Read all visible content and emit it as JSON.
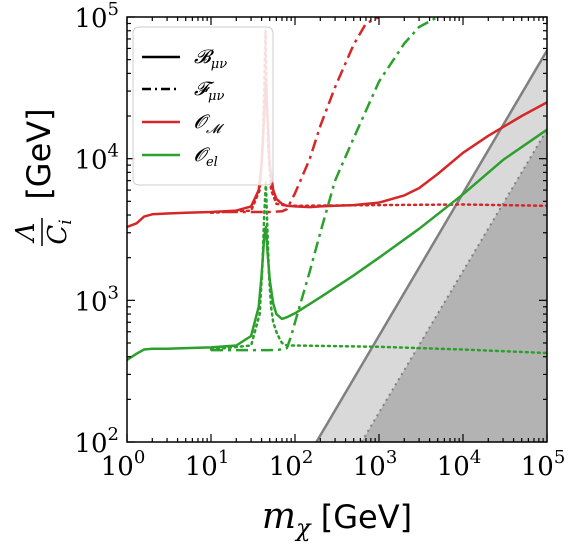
{
  "chart_data": {
    "type": "line",
    "xscale": "log",
    "yscale": "log",
    "xlim": [
      1,
      100000
    ],
    "ylim": [
      100,
      100000
    ],
    "xlabel": "m_χ  [GeV]",
    "ylabel": "Λ/C_i  [GeV]",
    "x_ticks": [
      {
        "value": 1,
        "label": "10^0"
      },
      {
        "value": 10,
        "label": "10^1"
      },
      {
        "value": 100,
        "label": "10^2"
      },
      {
        "value": 1000,
        "label": "10^3"
      },
      {
        "value": 10000,
        "label": "10^4"
      },
      {
        "value": 100000,
        "label": "10^5"
      }
    ],
    "y_ticks": [
      {
        "value": 100,
        "label": "10^2"
      },
      {
        "value": 1000,
        "label": "10^3"
      },
      {
        "value": 10000,
        "label": "10^4"
      },
      {
        "value": 100000,
        "label": "10^5"
      }
    ],
    "legend": {
      "placement": "top-left",
      "entries": [
        {
          "label": "𝓑_μν",
          "style": "solid",
          "color": "#000000"
        },
        {
          "label": "𝓕_μν",
          "style": "dashdot",
          "color": "#000000"
        },
        {
          "label": "𝓞_𝓜",
          "style": "solid",
          "color": "#d62728"
        },
        {
          "label": "𝓞_el",
          "style": "solid",
          "color": "#2ca02c"
        }
      ]
    },
    "regions": [
      {
        "name": "light-excluded",
        "color": "#d9d9d9",
        "boundary_x": [
          180,
          100000
        ],
        "boundary_y": [
          100,
          58000
        ]
      },
      {
        "name": "dark-excluded",
        "color": "#b3b3b3",
        "boundary_x": [
          620,
          100000
        ],
        "boundary_y": [
          100,
          16000
        ]
      }
    ],
    "series": [
      {
        "color": "#d62728",
        "style": "solid",
        "x": [
          1,
          1.3,
          1.6,
          2,
          3,
          5,
          10,
          20,
          30,
          37,
          40,
          43,
          45,
          47,
          50,
          55,
          60,
          70,
          80,
          100,
          150,
          200,
          300,
          500,
          1000,
          2000,
          3000,
          5000,
          10000,
          20000,
          50000,
          100000
        ],
        "y": [
          3300,
          3500,
          3900,
          4050,
          4100,
          4150,
          4200,
          4300,
          4600,
          6000,
          9000,
          20000,
          36000,
          20000,
          9000,
          6000,
          5200,
          4800,
          4650,
          4600,
          4550,
          4600,
          4650,
          4700,
          4900,
          5500,
          6200,
          7800,
          11000,
          14500,
          20000,
          25000
        ]
      },
      {
        "color": "#d62728",
        "style": "dotted",
        "x": [
          10,
          30,
          38,
          41,
          43,
          44.5,
          46,
          48,
          52,
          60,
          80,
          100,
          1000,
          10000,
          100000
        ],
        "y": [
          4150,
          4300,
          6000,
          12000,
          30000,
          80000,
          30000,
          12000,
          6000,
          4800,
          4650,
          4650,
          4700,
          4750,
          4650
        ]
      },
      {
        "color": "#d62728",
        "style": "dashdot",
        "x": [
          15,
          30,
          50,
          70,
          80,
          100,
          150,
          200,
          300,
          500,
          700,
          1000
        ],
        "y": [
          4200,
          4200,
          4200,
          4250,
          4400,
          5700,
          10000,
          17000,
          32000,
          64000,
          90000,
          100000
        ]
      },
      {
        "color": "#2ca02c",
        "style": "solid",
        "x": [
          1,
          1.3,
          1.6,
          2,
          3,
          5,
          10,
          20,
          30,
          37,
          40,
          43,
          45,
          47,
          50,
          55,
          60,
          70,
          80,
          100,
          200,
          500,
          1000,
          3000,
          10000,
          30000,
          100000
        ],
        "y": [
          380,
          420,
          450,
          455,
          455,
          460,
          465,
          480,
          560,
          900,
          1500,
          2800,
          3300,
          2200,
          1400,
          950,
          800,
          740,
          760,
          810,
          1050,
          1500,
          2000,
          3200,
          5600,
          9800,
          16000
        ]
      },
      {
        "color": "#2ca02c",
        "style": "dotted",
        "x": [
          10,
          30,
          38,
          41,
          43,
          45,
          47,
          49,
          52,
          55,
          60,
          65,
          70,
          80,
          100,
          1000,
          10000,
          100000
        ],
        "y": [
          450,
          480,
          800,
          1800,
          4000,
          6800,
          3000,
          1500,
          900,
          700,
          600,
          540,
          500,
          480,
          480,
          470,
          450,
          425
        ]
      },
      {
        "color": "#2ca02c",
        "style": "dashdot",
        "x": [
          10,
          30,
          50,
          70,
          80,
          90,
          100,
          150,
          200,
          300,
          500,
          1000,
          2000,
          3000,
          5000
        ],
        "y": [
          445,
          445,
          445,
          450,
          460,
          560,
          700,
          1600,
          3000,
          7000,
          14000,
          35000,
          65000,
          85000,
          100000
        ]
      }
    ]
  }
}
